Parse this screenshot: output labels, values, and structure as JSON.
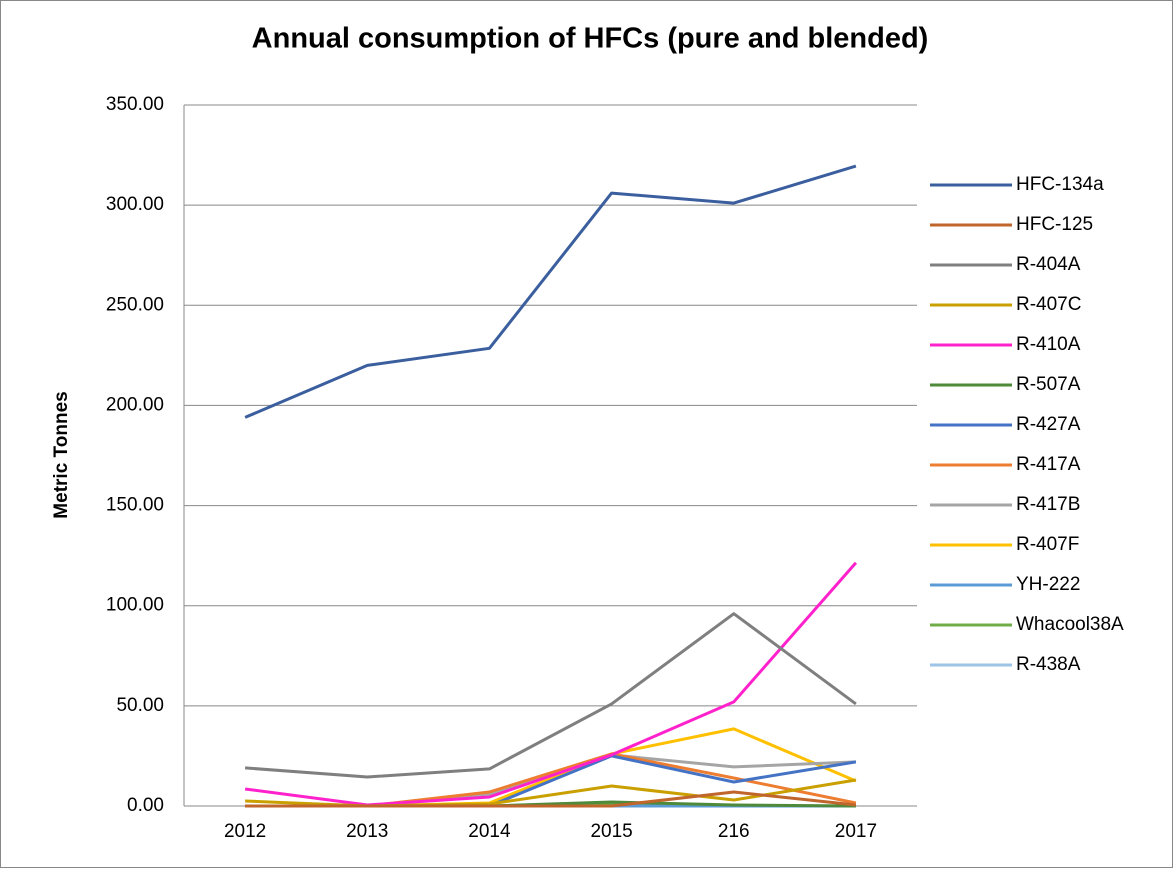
{
  "chart_data": {
    "type": "line",
    "title": "Annual consumption of HFCs (pure and blended)",
    "y_label": "Metric Tonnes",
    "categories": [
      "2012",
      "2013",
      "2014",
      "2015",
      "216",
      "2017"
    ],
    "series": [
      {
        "name": "HFC-134a",
        "color": "#3b5f9e",
        "values": [
          194,
          220,
          228.5,
          306,
          301,
          319.5
        ]
      },
      {
        "name": "HFC-125",
        "color": "#c0652b",
        "values": [
          0,
          0,
          0,
          0,
          7,
          0.5
        ]
      },
      {
        "name": "R-404A",
        "color": "#7f7f7f",
        "values": [
          19,
          14.5,
          18.5,
          51,
          96,
          51
        ]
      },
      {
        "name": "R-407C",
        "color": "#c9a000",
        "values": [
          2.5,
          0,
          1,
          10,
          3,
          13
        ]
      },
      {
        "name": "R-410A",
        "color": "#ff22cc",
        "values": [
          8.5,
          0.5,
          4.5,
          25.5,
          52,
          121.5
        ]
      },
      {
        "name": "R-507A",
        "color": "#4e8a3a",
        "values": [
          0,
          0,
          0,
          2,
          0.5,
          0
        ]
      },
      {
        "name": "R-427A",
        "color": "#4472c4",
        "values": [
          0,
          0,
          0,
          25,
          12,
          22
        ]
      },
      {
        "name": "R-417A",
        "color": "#ed7d31",
        "values": [
          0,
          0,
          7,
          26,
          14,
          1.5
        ]
      },
      {
        "name": "R-417B",
        "color": "#a5a5a5",
        "values": [
          0,
          0,
          6,
          25.5,
          19.5,
          22
        ]
      },
      {
        "name": "R-407F",
        "color": "#ffc000",
        "values": [
          0,
          0,
          1.5,
          26,
          38.5,
          12.5
        ]
      },
      {
        "name": "YH-222",
        "color": "#5b9bd5",
        "values": [
          0,
          0,
          0,
          0,
          0,
          0
        ]
      },
      {
        "name": "Whacool38A",
        "color": "#70ad47",
        "values": [
          0,
          0,
          0,
          1,
          0,
          0
        ]
      },
      {
        "name": "R-438A",
        "color": "#9dc3e6",
        "values": [
          0,
          0,
          0,
          0,
          0,
          0
        ]
      }
    ],
    "ylim": [
      0,
      350
    ],
    "yticks": [
      {
        "value": 0,
        "label": "0.00"
      },
      {
        "value": 50,
        "label": "50.00"
      },
      {
        "value": 100,
        "label": "100.00"
      },
      {
        "value": 150,
        "label": "150.00"
      },
      {
        "value": 200,
        "label": "200.00"
      },
      {
        "value": 250,
        "label": "250.00"
      },
      {
        "value": 300,
        "label": "300.00"
      },
      {
        "value": 350,
        "label": "350.00"
      }
    ],
    "grid": true,
    "legend": "right"
  }
}
